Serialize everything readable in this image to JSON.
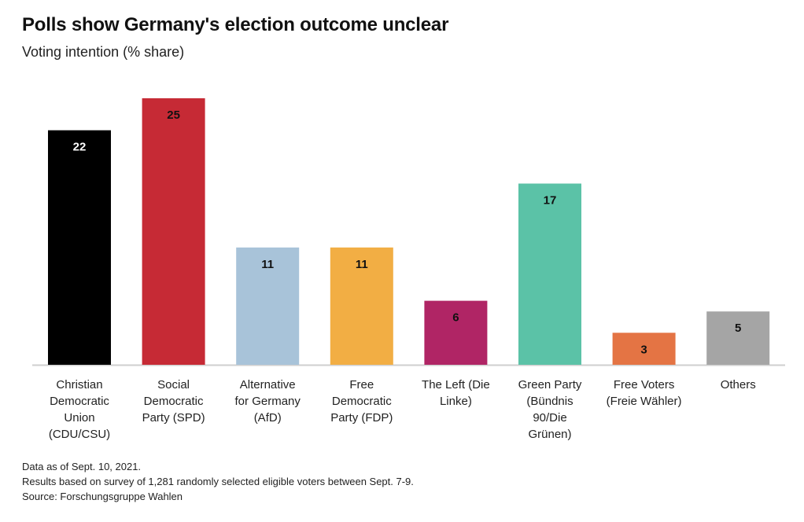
{
  "chart_data": {
    "type": "bar",
    "title": "Polls show Germany's election outcome unclear",
    "subtitle": "Voting intention (% share)",
    "xlabel": "",
    "ylabel": "",
    "ylim": [
      0,
      25
    ],
    "grid": false,
    "categories": [
      [
        "Christian",
        "Democratic",
        "Union",
        "(CDU/CSU)"
      ],
      [
        "Social",
        "Democratic",
        "Party (SPD)"
      ],
      [
        "Alternative",
        "for Germany",
        "(AfD)"
      ],
      [
        "Free",
        "Democratic",
        "Party (FDP)"
      ],
      [
        "The Left (Die",
        "Linke)"
      ],
      [
        "Green Party",
        "(Bündnis",
        "90/Die",
        "Grünen)"
      ],
      [
        "Free Voters",
        "(Freie Wähler)"
      ],
      [
        "Others"
      ]
    ],
    "values": [
      22,
      25,
      11,
      11,
      6,
      17,
      3,
      5
    ],
    "colors": [
      "#000000",
      "#c62a35",
      "#a8c3d9",
      "#f2ae44",
      "#b02565",
      "#5bc2a7",
      "#e47444",
      "#a5a5a5"
    ],
    "label_colors": [
      "#ffffff",
      "#111111",
      "#111111",
      "#111111",
      "#111111",
      "#111111",
      "#111111",
      "#111111"
    ]
  },
  "notes": [
    "Data as of Sept. 10, 2021.",
    "Results based on survey of 1,281 randomly selected eligible voters between Sept. 7-9.",
    "Source: Forschungsgruppe Wahlen"
  ]
}
